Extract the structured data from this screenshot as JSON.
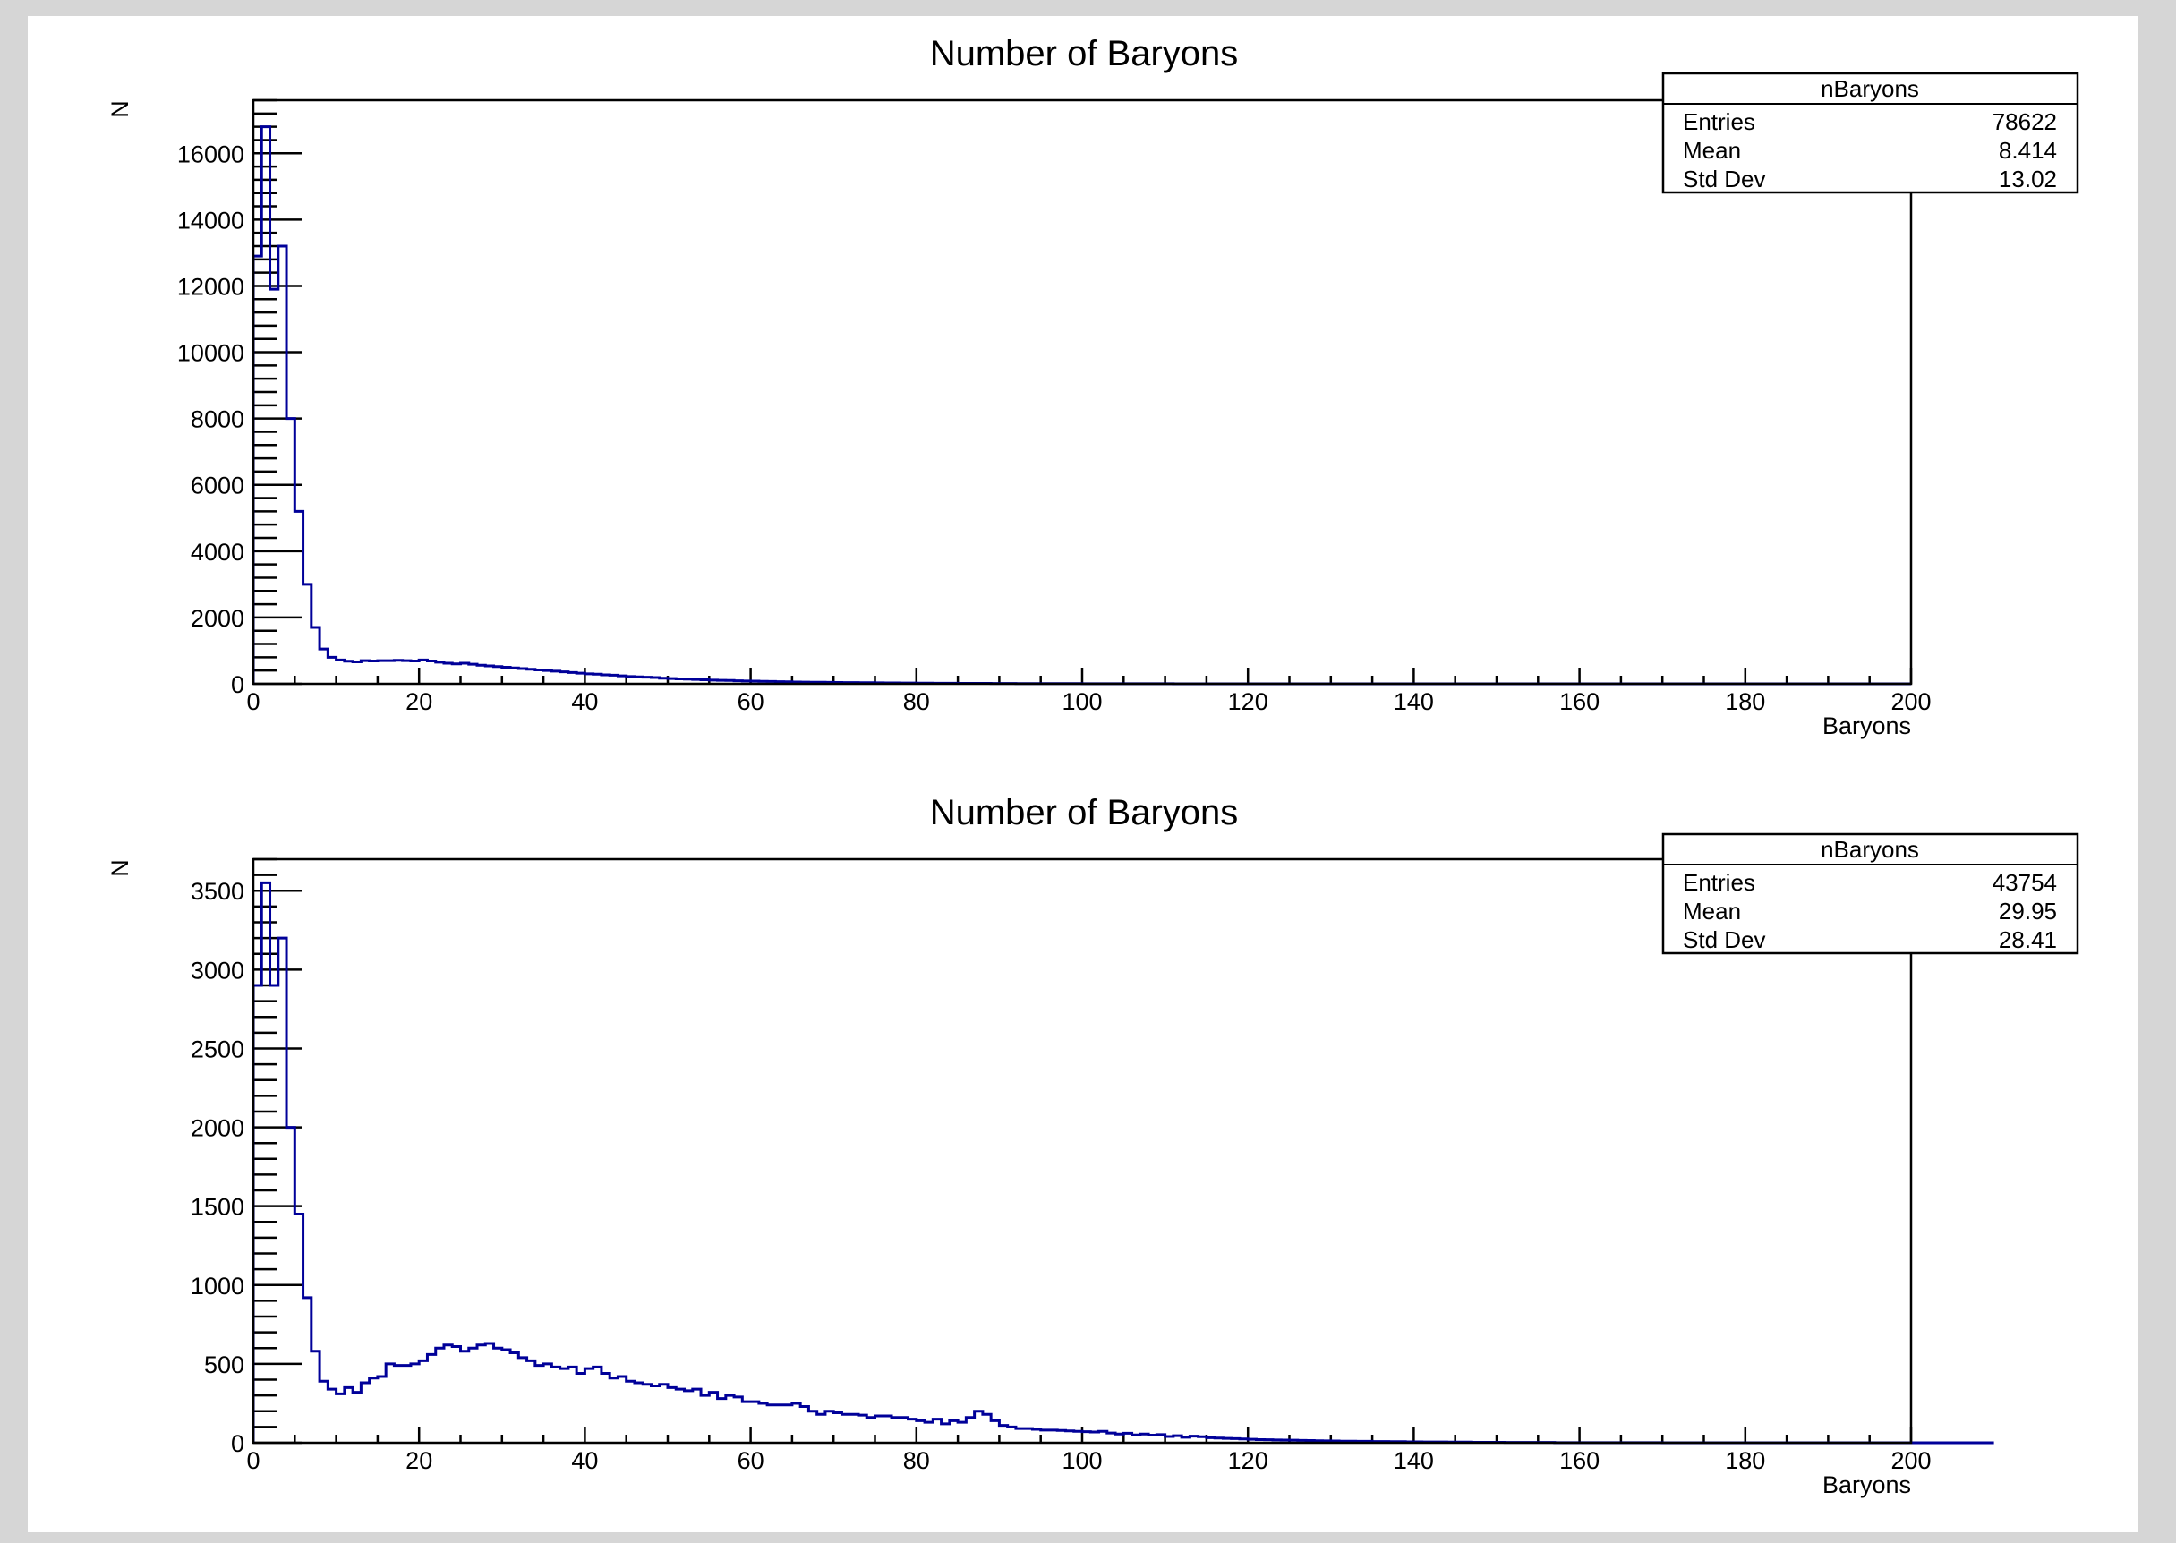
{
  "chart_data": [
    {
      "type": "histogram",
      "title": "Number of Baryons",
      "xlabel": "Baryons",
      "ylabel": "N",
      "xlim": [
        0,
        200
      ],
      "ylim": [
        0,
        17600
      ],
      "x_ticks": [
        0,
        20,
        40,
        60,
        80,
        100,
        120,
        140,
        160,
        180,
        200
      ],
      "y_ticks": [
        0,
        2000,
        4000,
        6000,
        8000,
        10000,
        12000,
        14000,
        16000
      ],
      "line_color": "#000099",
      "bin_width": 1,
      "stats": {
        "name": "nBaryons",
        "rows": [
          {
            "label": "Entries",
            "value": "78622"
          },
          {
            "label": "Mean",
            "value": "8.414"
          },
          {
            "label": "Std Dev",
            "value": "13.02"
          }
        ]
      },
      "values": [
        12900,
        16800,
        11900,
        13200,
        8000,
        5200,
        3000,
        1700,
        1050,
        800,
        720,
        680,
        660,
        700,
        690,
        700,
        700,
        710,
        700,
        690,
        720,
        690,
        650,
        620,
        600,
        620,
        590,
        560,
        540,
        520,
        500,
        480,
        460,
        440,
        420,
        400,
        380,
        360,
        340,
        320,
        300,
        290,
        270,
        260,
        240,
        220,
        210,
        200,
        190,
        170,
        160,
        150,
        140,
        130,
        120,
        110,
        105,
        100,
        90,
        85,
        80,
        75,
        70,
        65,
        60,
        55,
        50,
        48,
        46,
        44,
        40,
        38,
        36,
        34,
        32,
        30,
        28,
        26,
        24,
        22,
        20,
        19,
        18,
        17,
        16,
        15,
        14,
        13,
        12,
        11,
        10,
        9,
        8,
        8,
        7,
        7,
        6,
        6,
        5,
        5,
        4,
        4,
        4,
        3,
        3,
        3,
        2,
        2,
        2,
        2,
        2,
        1,
        1,
        1,
        1,
        1,
        1,
        1,
        1,
        1,
        0,
        0,
        0,
        0,
        0,
        0,
        0,
        0,
        0,
        0,
        0,
        0,
        0,
        0,
        0,
        0,
        0,
        0,
        0,
        0,
        0,
        0,
        0,
        0,
        0,
        0,
        0,
        0,
        0,
        0,
        0,
        0,
        0,
        0,
        0,
        0,
        0,
        0,
        0,
        0,
        0,
        0,
        0,
        0,
        0,
        0,
        0,
        0,
        0,
        0,
        0,
        0,
        0,
        0,
        0,
        0,
        0,
        0,
        0,
        0,
        0,
        0,
        0,
        0,
        0,
        0,
        0,
        0,
        0,
        0,
        0,
        0,
        0,
        0,
        0,
        0,
        0,
        0,
        0,
        0
      ]
    },
    {
      "type": "histogram",
      "title": "Number of Baryons",
      "xlabel": "Baryons",
      "ylabel": "N",
      "xlim": [
        0,
        200
      ],
      "ylim": [
        0,
        3700
      ],
      "x_ticks": [
        0,
        20,
        40,
        60,
        80,
        100,
        120,
        140,
        160,
        180,
        200
      ],
      "y_ticks": [
        0,
        500,
        1000,
        1500,
        2000,
        2500,
        3000,
        3500
      ],
      "line_color": "#000099",
      "bin_width": 1,
      "stats": {
        "name": "nBaryons",
        "rows": [
          {
            "label": "Entries",
            "value": "43754"
          },
          {
            "label": "Mean",
            "value": "29.95"
          },
          {
            "label": "Std Dev",
            "value": "28.41"
          }
        ]
      },
      "values": [
        2900,
        3550,
        2900,
        3200,
        2000,
        1450,
        920,
        580,
        390,
        340,
        310,
        350,
        320,
        380,
        410,
        420,
        500,
        490,
        490,
        500,
        520,
        560,
        600,
        620,
        610,
        580,
        600,
        620,
        630,
        600,
        590,
        570,
        540,
        520,
        490,
        500,
        480,
        470,
        480,
        440,
        470,
        480,
        440,
        410,
        420,
        390,
        380,
        370,
        360,
        370,
        350,
        340,
        330,
        340,
        300,
        320,
        280,
        300,
        290,
        260,
        260,
        250,
        240,
        240,
        240,
        250,
        230,
        200,
        180,
        200,
        190,
        180,
        180,
        175,
        160,
        170,
        170,
        160,
        160,
        150,
        140,
        130,
        150,
        120,
        140,
        130,
        160,
        200,
        180,
        140,
        110,
        100,
        90,
        90,
        85,
        80,
        80,
        78,
        75,
        72,
        70,
        68,
        72,
        62,
        55,
        60,
        50,
        55,
        48,
        52,
        40,
        45,
        35,
        42,
        38,
        32,
        30,
        28,
        26,
        24,
        22,
        20,
        19,
        18,
        17,
        16,
        15,
        14,
        13,
        12,
        11,
        10,
        10,
        9,
        9,
        8,
        8,
        7,
        7,
        6,
        6,
        5,
        5,
        5,
        4,
        4,
        4,
        3,
        3,
        3,
        3,
        2,
        2,
        2,
        2,
        2,
        2,
        1,
        1,
        1,
        1,
        1,
        1,
        1,
        1,
        1,
        1,
        1,
        1,
        1,
        0,
        0,
        0,
        0,
        0,
        0,
        0,
        0,
        0,
        0,
        0,
        0,
        0,
        0,
        0,
        0,
        0,
        0,
        0,
        0,
        0,
        0,
        0,
        0,
        0,
        0,
        0,
        0,
        0,
        0,
        0,
        0,
        0,
        0,
        0,
        0,
        0,
        0,
        0,
        0
      ]
    }
  ]
}
